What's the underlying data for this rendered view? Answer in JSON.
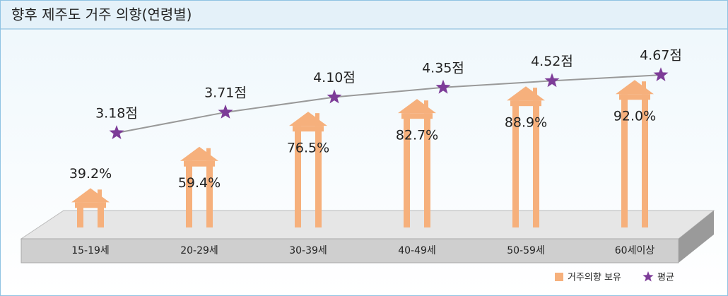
{
  "chart_data": {
    "type": "house-bar-line",
    "title": "향후 제주도 거주 의향(연령별)",
    "categories": [
      "15-19세",
      "20-29세",
      "30-39세",
      "40-49세",
      "50-59세",
      "60세이상"
    ],
    "series": [
      {
        "name": "거주의향 보유",
        "color": "#f6b07c",
        "values": [
          39.2,
          59.4,
          76.5,
          82.7,
          88.9,
          92.0
        ],
        "value_labels": [
          "39.2%",
          "59.4%",
          "76.5%",
          "82.7%",
          "88.9%",
          "92.0%"
        ]
      },
      {
        "name": "평균",
        "color": "#7d3c98",
        "axis": "y2",
        "values": [
          3.18,
          3.71,
          4.1,
          4.35,
          4.52,
          4.67
        ],
        "value_labels": [
          "3.18점",
          "3.71점",
          "4.10점",
          "4.35점",
          "4.52점",
          "4.67점"
        ]
      }
    ],
    "ylim": [
      20,
      100
    ],
    "y2lim": [
      3,
      5
    ],
    "line_color": "#999999"
  }
}
